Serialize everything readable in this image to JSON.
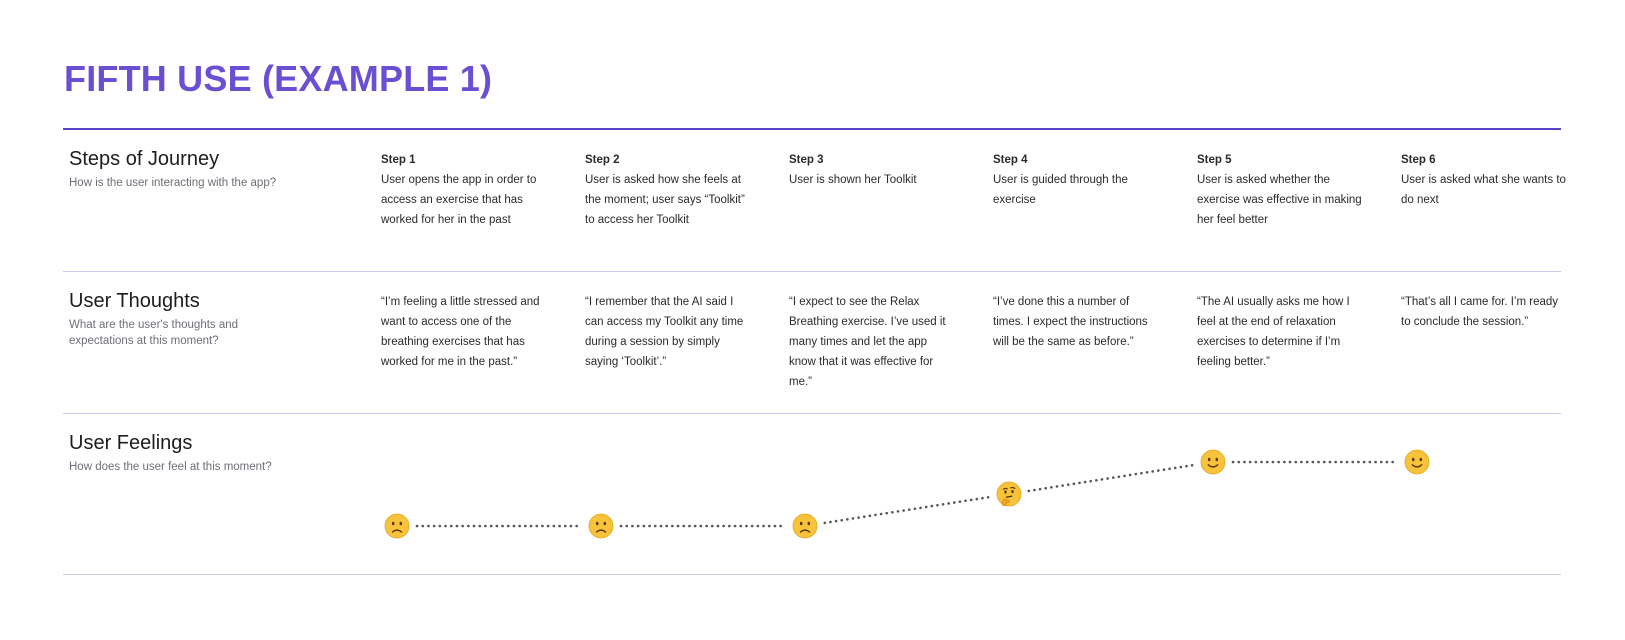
{
  "page": {
    "title": "FIFTH USE (EXAMPLE 1)"
  },
  "sections": {
    "steps": {
      "title": "Steps of Journey",
      "subtitle": "How is the user interacting with the app?"
    },
    "thoughts": {
      "title": "User Thoughts",
      "subtitle": "What are the user's thoughts and expectations at this moment?"
    },
    "feelings": {
      "title": "User Feelings",
      "subtitle": "How does the user feel at this moment?"
    }
  },
  "steps": [
    {
      "label": "Step 1",
      "text": "User opens the app in order to access an exercise that has worked for her in the past"
    },
    {
      "label": "Step 2",
      "text": "User is asked how she feels at the moment; user says “Toolkit” to access her Toolkit"
    },
    {
      "label": "Step 3",
      "text": "User is shown her Toolkit"
    },
    {
      "label": "Step 4",
      "text": "User is guided through the exercise"
    },
    {
      "label": "Step 5",
      "text": "User is asked whether the exercise was effective in making her feel better"
    },
    {
      "label": "Step 6",
      "text": "User is asked what she wants to do next"
    }
  ],
  "thoughts": [
    "“I’m feeling a little stressed and want to access one of the breathing exercises that has worked for me in the past.”",
    "“I remember that the AI said I can access my Toolkit any time during a session by simply saying ‘Toolkit’.”",
    "“I expect to see the Relax Breathing exercise. I’ve used it many times and let the app know that it was effective for me.”",
    "“I’ve done this a number of times. I expect the instructions will be the same as before.”",
    "“The AI usually asks me how I feel at the end of relaxation exercises to determine if I’m feeling better.”",
    "“That’s all I came for. I’m ready to conclude the session.”"
  ],
  "feelings": [
    {
      "icon": "slightly-frowning-face-icon",
      "level": 0
    },
    {
      "icon": "slightly-frowning-face-icon",
      "level": 0
    },
    {
      "icon": "slightly-frowning-face-icon",
      "level": 0
    },
    {
      "icon": "thinking-face-icon",
      "level": 1
    },
    {
      "icon": "slightly-smiling-face-icon",
      "level": 2
    },
    {
      "icon": "slightly-smiling-face-icon",
      "level": 2
    }
  ],
  "colors": {
    "accent": "#6a4fd2",
    "rule": "#cfcaf0",
    "emoji": "#f8c33b"
  }
}
